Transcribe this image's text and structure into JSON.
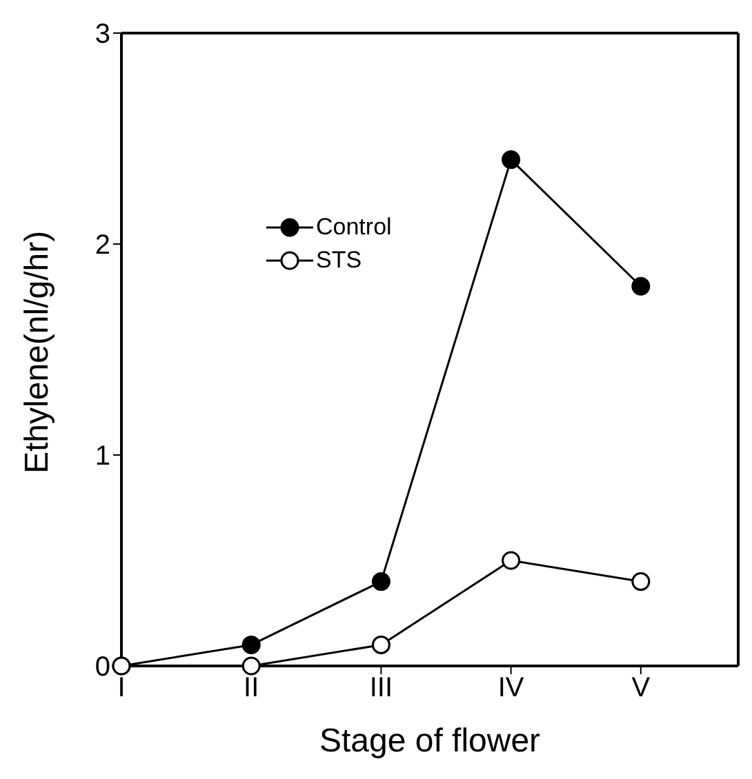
{
  "chart_data": {
    "type": "line",
    "xlabel": "Stage of flower",
    "ylabel": "Ethylene(nl/g/hr)",
    "categories": [
      "I",
      "II",
      "III",
      "IV",
      "V"
    ],
    "series": [
      {
        "name": "Control",
        "color": "#000000",
        "values": [
          0,
          0.1,
          0.4,
          2.4,
          1.8
        ]
      },
      {
        "name": "STS",
        "color": "#000000",
        "values": [
          0,
          0,
          0.1,
          0.5,
          0.4
        ]
      }
    ],
    "ylim": [
      0,
      3
    ],
    "yticks": [
      0,
      1,
      2,
      3
    ],
    "legend": "top left",
    "marker": "circle",
    "line_style": "solid"
  }
}
